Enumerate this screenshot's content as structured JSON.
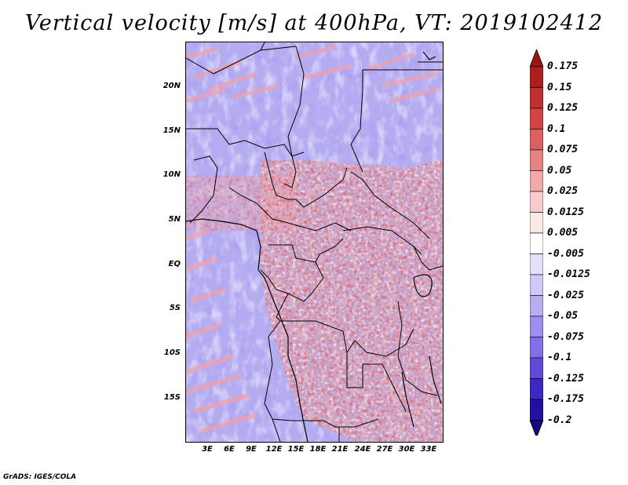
{
  "title": "Vertical velocity [m/s] at 400hPa, VT: 2019102412",
  "credit": "GrADS: IGES/COLA",
  "map": {
    "lat_ticks": [
      "20N",
      "15N",
      "10N",
      "5N",
      "EQ",
      "5S",
      "10S",
      "15S"
    ],
    "lon_ticks": [
      "3E",
      "6E",
      "9E",
      "12E",
      "15E",
      "18E",
      "21E",
      "24E",
      "27E",
      "30E",
      "33E"
    ]
  },
  "colorbar": {
    "labels": [
      "0.175",
      "0.15",
      "0.125",
      "0.1",
      "0.075",
      "0.05",
      "0.025",
      "0.0125",
      "0.005",
      "-0.005",
      "-0.0125",
      "-0.025",
      "-0.05",
      "-0.075",
      "-0.1",
      "-0.125",
      "-0.175",
      "-0.2"
    ],
    "colors": [
      "#9b1414",
      "#ad1e1e",
      "#c03030",
      "#d24444",
      "#dd6060",
      "#e88282",
      "#f2a8a8",
      "#f8cccc",
      "#fde8e8",
      "#ffffff",
      "#e4e0fc",
      "#cfc9f8",
      "#b6aef3",
      "#9c90ee",
      "#7f70e6",
      "#5e4cd8",
      "#3c28c2",
      "#2210a4",
      "#150a80"
    ]
  },
  "icons": {
    "colorbar_top": "triangle-up-icon",
    "colorbar_bottom": "triangle-down-icon"
  }
}
